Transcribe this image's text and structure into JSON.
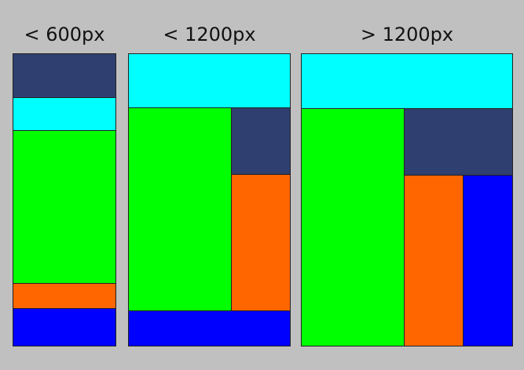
{
  "colors": {
    "background": "#c0c0c0",
    "navy": "#2e3f70",
    "cyan": "#00ffff",
    "green": "#00ff00",
    "orange": "#ff6600",
    "blue": "#0000ff"
  },
  "layouts": [
    {
      "label": "< 600px",
      "blocks": [
        {
          "name": "block-navy",
          "color": "navy"
        },
        {
          "name": "block-cyan",
          "color": "cyan"
        },
        {
          "name": "block-green",
          "color": "green"
        },
        {
          "name": "block-orange",
          "color": "orange"
        },
        {
          "name": "block-blue",
          "color": "blue"
        }
      ]
    },
    {
      "label": "< 1200px",
      "blocks": [
        {
          "name": "block-cyan",
          "color": "cyan"
        },
        {
          "name": "block-green",
          "color": "green"
        },
        {
          "name": "block-navy",
          "color": "navy"
        },
        {
          "name": "block-orange",
          "color": "orange"
        },
        {
          "name": "block-blue",
          "color": "blue"
        }
      ]
    },
    {
      "label": "> 1200px",
      "blocks": [
        {
          "name": "block-cyan",
          "color": "cyan"
        },
        {
          "name": "block-green",
          "color": "green"
        },
        {
          "name": "block-navy",
          "color": "navy"
        },
        {
          "name": "block-orange",
          "color": "orange"
        },
        {
          "name": "block-blue",
          "color": "blue"
        }
      ]
    }
  ]
}
